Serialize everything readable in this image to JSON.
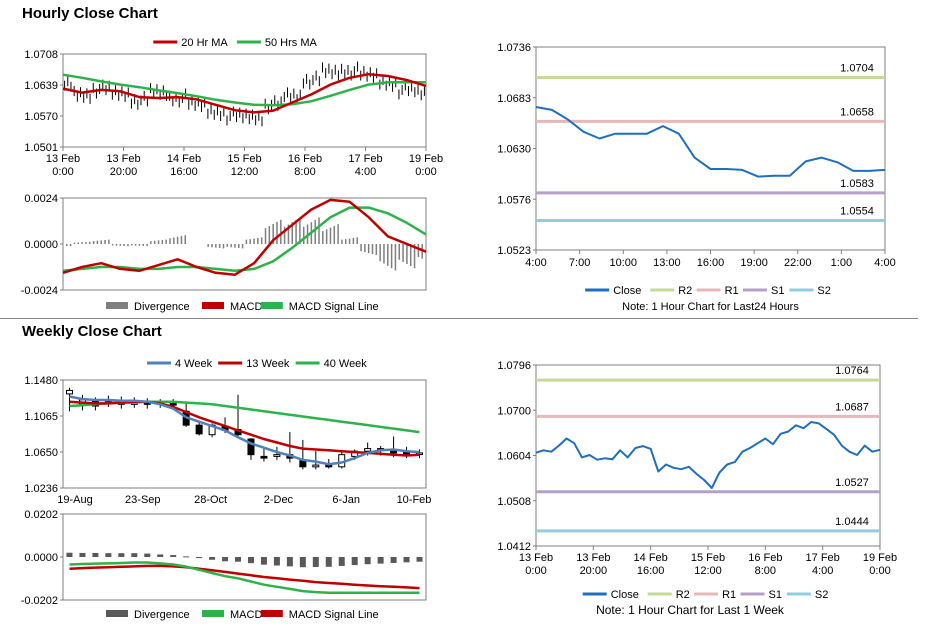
{
  "hourly_title": "Hourly Close Chart",
  "weekly_title": "Weekly Close Chart",
  "chart_data": [
    {
      "id": "hourly-price",
      "type": "line",
      "ylim": [
        1.0501,
        1.0708
      ],
      "yticks": [
        "1.0708",
        "1.0639",
        "1.0570",
        "1.0501"
      ],
      "xticks": [
        [
          "13 Feb",
          "0:00"
        ],
        [
          "13 Feb",
          "20:00"
        ],
        [
          "14 Feb",
          "16:00"
        ],
        [
          "15 Feb",
          "12:00"
        ],
        [
          "16 Feb",
          "8:00"
        ],
        [
          "17 Feb",
          "4:00"
        ],
        [
          "19 Feb",
          "0:00"
        ]
      ],
      "legend": [
        "20 Hr MA",
        "50 Hrs MA"
      ],
      "colors": {
        "ma20": "#c00000",
        "ma50": "#2db34a",
        "price": "#000000"
      },
      "series": [
        {
          "name": "20 Hr MA",
          "values": [
            1.0631,
            1.0622,
            1.0628,
            1.0625,
            1.0612,
            1.061,
            1.0612,
            1.0607,
            1.0595,
            1.0583,
            1.0578,
            1.0582,
            1.06,
            1.0618,
            1.064,
            1.0655,
            1.0663,
            1.0659,
            1.065,
            1.0637
          ]
        },
        {
          "name": "50 Hrs MA",
          "values": [
            1.0662,
            1.0655,
            1.0647,
            1.064,
            1.0634,
            1.0627,
            1.0621,
            1.0614,
            1.0606,
            1.06,
            1.0595,
            1.0594,
            1.0596,
            1.0603,
            1.0615,
            1.0628,
            1.064,
            1.0645,
            1.0645,
            1.0645
          ]
        },
        {
          "name": "Price",
          "values": [
            1.064,
            1.0618,
            1.063,
            1.062,
            1.0605,
            1.0622,
            1.061,
            1.0595,
            1.058,
            1.057,
            1.0568,
            1.0595,
            1.0615,
            1.065,
            1.0668,
            1.067,
            1.066,
            1.0645,
            1.0628,
            1.0621
          ]
        }
      ]
    },
    {
      "id": "hourly-macd",
      "type": "bar+line",
      "ylim": [
        -0.0024,
        0.0024
      ],
      "yticks": [
        "0.0024",
        "0.0000",
        "-0.0024"
      ],
      "legend": [
        "Divergence",
        "MACD",
        "MACD Signal Line"
      ],
      "colors": {
        "divergence": "#7f7f7f",
        "macd": "#c00000",
        "signal": "#2db34a"
      },
      "series": [
        {
          "name": "MACD",
          "values": [
            -0.0015,
            -0.0012,
            -0.001,
            -0.0013,
            -0.0014,
            -0.0011,
            -0.0008,
            -0.0012,
            -0.0015,
            -0.0016,
            -0.001,
            0.0002,
            0.001,
            0.0018,
            0.0023,
            0.0022,
            0.0014,
            0.0004,
            0.0,
            -0.0004
          ]
        },
        {
          "name": "MACD Signal Line",
          "values": [
            -0.0014,
            -0.0013,
            -0.0012,
            -0.0012,
            -0.0013,
            -0.0013,
            -0.0012,
            -0.0012,
            -0.0013,
            -0.0014,
            -0.0013,
            -0.0009,
            -0.0002,
            0.0006,
            0.0014,
            0.0019,
            0.0019,
            0.0016,
            0.0011,
            0.0005
          ]
        },
        {
          "name": "Divergence",
          "values": [
            -0.0001,
            0.0001,
            0.0002,
            -0.0001,
            -0.0001,
            0.0002,
            0.0004,
            0.0,
            -0.0002,
            -0.0002,
            0.0003,
            0.0011,
            0.0012,
            0.0012,
            0.0009,
            0.0003,
            -0.0005,
            -0.0012,
            -0.0011,
            -0.0009
          ]
        }
      ]
    },
    {
      "id": "hourly-24h",
      "type": "line",
      "ylim": [
        1.0523,
        1.0736
      ],
      "yticks": [
        "1.0736",
        "1.0683",
        "1.0630",
        "1.0576",
        "1.0523"
      ],
      "xticks": [
        "4:00",
        "7:00",
        "10:00",
        "13:00",
        "16:00",
        "19:00",
        "22:00",
        "1:00",
        "4:00"
      ],
      "legend": [
        "Close",
        "R2",
        "R1",
        "S1",
        "S2"
      ],
      "levels": {
        "R2": 1.0704,
        "R1": 1.0658,
        "S1": 1.0583,
        "S2": 1.0554
      },
      "level_labels": {
        "R2": "1.0704",
        "R1": "1.0658",
        "S1": "1.0583",
        "S2": "1.0554"
      },
      "colors": {
        "close": "#1f6fbf",
        "R2": "#c5d99a",
        "R1": "#e6b8b7",
        "S1": "#b3a2c7",
        "S2": "#93cddd"
      },
      "close": [
        1.0673,
        1.067,
        1.066,
        1.0647,
        1.064,
        1.0645,
        1.0645,
        1.0645,
        1.0653,
        1.0645,
        1.062,
        1.0608,
        1.0608,
        1.0607,
        1.06,
        1.0601,
        1.0601,
        1.0616,
        1.062,
        1.0615,
        1.0606,
        1.0606,
        1.0607
      ],
      "note": "Note: 1 Hour Chart for Last24 Hours"
    },
    {
      "id": "weekly-price",
      "type": "candlestick",
      "ylim": [
        1.0236,
        1.148
      ],
      "yticks": [
        "1.1480",
        "1.1065",
        "1.0650",
        "1.0236"
      ],
      "xticks": [
        "19-Aug",
        "23-Sep",
        "28-Oct",
        "2-Dec",
        "6-Jan",
        "10-Feb"
      ],
      "legend": [
        "4 Week",
        "13 Week",
        "40 Week"
      ],
      "colors": {
        "ma4": "#4f81bd",
        "ma13": "#c00000",
        "ma40": "#2db34a"
      },
      "candles": [
        {
          "o": 1.132,
          "c": 1.136,
          "h": 1.139,
          "l": 1.112
        },
        {
          "o": 1.12,
          "c": 1.125,
          "h": 1.131,
          "l": 1.113
        },
        {
          "o": 1.124,
          "c": 1.118,
          "h": 1.128,
          "l": 1.113
        },
        {
          "o": 1.121,
          "c": 1.123,
          "h": 1.13,
          "l": 1.117
        },
        {
          "o": 1.122,
          "c": 1.12,
          "h": 1.129,
          "l": 1.115
        },
        {
          "o": 1.12,
          "c": 1.124,
          "h": 1.128,
          "l": 1.116
        },
        {
          "o": 1.123,
          "c": 1.12,
          "h": 1.127,
          "l": 1.115
        },
        {
          "o": 1.123,
          "c": 1.122,
          "h": 1.126,
          "l": 1.116
        },
        {
          "o": 1.121,
          "c": 1.119,
          "h": 1.126,
          "l": 1.114
        },
        {
          "o": 1.112,
          "c": 1.096,
          "h": 1.121,
          "l": 1.094
        },
        {
          "o": 1.096,
          "c": 1.086,
          "h": 1.101,
          "l": 1.084
        },
        {
          "o": 1.085,
          "c": 1.096,
          "h": 1.098,
          "l": 1.082
        },
        {
          "o": 1.095,
          "c": 1.09,
          "h": 1.105,
          "l": 1.087
        },
        {
          "o": 1.091,
          "c": 1.085,
          "h": 1.131,
          "l": 1.081
        },
        {
          "o": 1.08,
          "c": 1.062,
          "h": 1.081,
          "l": 1.056
        },
        {
          "o": 1.06,
          "c": 1.058,
          "h": 1.069,
          "l": 1.054
        },
        {
          "o": 1.06,
          "c": 1.062,
          "h": 1.071,
          "l": 1.056
        },
        {
          "o": 1.062,
          "c": 1.058,
          "h": 1.088,
          "l": 1.053
        },
        {
          "o": 1.055,
          "c": 1.048,
          "h": 1.079,
          "l": 1.045
        },
        {
          "o": 1.048,
          "c": 1.05,
          "h": 1.066,
          "l": 1.045
        },
        {
          "o": 1.05,
          "c": 1.048,
          "h": 1.057,
          "l": 1.046
        },
        {
          "o": 1.048,
          "c": 1.062,
          "h": 1.065,
          "l": 1.046
        },
        {
          "o": 1.06,
          "c": 1.066,
          "h": 1.068,
          "l": 1.056
        },
        {
          "o": 1.066,
          "c": 1.069,
          "h": 1.076,
          "l": 1.061
        },
        {
          "o": 1.069,
          "c": 1.068,
          "h": 1.072,
          "l": 1.061
        },
        {
          "o": 1.067,
          "c": 1.064,
          "h": 1.083,
          "l": 1.059
        },
        {
          "o": 1.065,
          "c": 1.061,
          "h": 1.071,
          "l": 1.058
        },
        {
          "o": 1.063,
          "c": 1.064,
          "h": 1.068,
          "l": 1.058
        }
      ],
      "series": [
        {
          "name": "4 Week",
          "values": [
            1.129,
            1.126,
            1.125,
            1.125,
            1.124,
            1.124,
            1.123,
            1.12,
            1.115,
            1.105,
            1.1,
            1.095,
            1.09,
            1.082,
            1.075,
            1.07,
            1.065,
            1.061,
            1.056,
            1.054,
            1.051,
            1.053,
            1.058,
            1.064,
            1.067,
            1.068,
            1.066,
            1.065
          ]
        },
        {
          "name": "13 Week",
          "values": [
            1.123,
            1.122,
            1.121,
            1.121,
            1.122,
            1.123,
            1.123,
            1.121,
            1.117,
            1.111,
            1.105,
            1.1,
            1.095,
            1.09,
            1.085,
            1.08,
            1.076,
            1.072,
            1.069,
            1.068,
            1.067,
            1.066,
            1.065,
            1.064,
            1.063,
            1.062,
            1.061,
            1.062
          ]
        },
        {
          "name": "40 Week",
          "values": [
            1.118,
            1.119,
            1.12,
            1.121,
            1.122,
            1.122,
            1.123,
            1.123,
            1.123,
            1.122,
            1.121,
            1.12,
            1.118,
            1.116,
            1.114,
            1.112,
            1.11,
            1.108,
            1.106,
            1.104,
            1.102,
            1.1,
            1.098,
            1.096,
            1.094,
            1.092,
            1.09,
            1.088
          ]
        }
      ]
    },
    {
      "id": "weekly-macd",
      "type": "bar+line",
      "ylim": [
        -0.0202,
        0.0202
      ],
      "yticks": [
        "0.0202",
        "0.0000",
        "-0.0202"
      ],
      "legend": [
        "Divergence",
        "MACD",
        "MACD Signal Line"
      ],
      "colors": {
        "divergence": "#595959",
        "macd": "#2db34a",
        "signal": "#c00000"
      },
      "series": [
        {
          "name": "MACD",
          "values": [
            -0.0035,
            -0.0033,
            -0.0031,
            -0.003,
            -0.0028,
            -0.0026,
            -0.0026,
            -0.003,
            -0.0035,
            -0.0045,
            -0.006,
            -0.0075,
            -0.009,
            -0.01,
            -0.0115,
            -0.013,
            -0.014,
            -0.015,
            -0.016,
            -0.0165,
            -0.0168,
            -0.0168,
            -0.0168,
            -0.0168,
            -0.0168,
            -0.0168,
            -0.0168,
            -0.0168
          ]
        },
        {
          "name": "MACD Signal Line",
          "values": [
            -0.0055,
            -0.0052,
            -0.005,
            -0.0048,
            -0.0046,
            -0.0044,
            -0.0042,
            -0.0042,
            -0.0044,
            -0.0048,
            -0.0055,
            -0.0062,
            -0.007,
            -0.0078,
            -0.0086,
            -0.0094,
            -0.01,
            -0.0106,
            -0.0112,
            -0.0118,
            -0.0122,
            -0.0126,
            -0.013,
            -0.0134,
            -0.0137,
            -0.014,
            -0.0143,
            -0.0146
          ]
        },
        {
          "name": "Divergence",
          "values": [
            0.002,
            0.0019,
            0.0019,
            0.0018,
            0.0018,
            0.0018,
            0.0016,
            0.0012,
            0.0009,
            0.0003,
            -0.0005,
            -0.0013,
            -0.002,
            -0.0022,
            -0.0029,
            -0.0036,
            -0.004,
            -0.0044,
            -0.0048,
            -0.0047,
            -0.0046,
            -0.0042,
            -0.0038,
            -0.0034,
            -0.0031,
            -0.0028,
            -0.0025,
            -0.0022
          ]
        }
      ]
    },
    {
      "id": "weekly-1w",
      "type": "line",
      "ylim": [
        1.0412,
        1.0796
      ],
      "yticks": [
        "1.0796",
        "1.0700",
        "1.0604",
        "1.0508",
        "1.0412"
      ],
      "xticks": [
        [
          "13 Feb",
          "0:00"
        ],
        [
          "13 Feb",
          "20:00"
        ],
        [
          "14 Feb",
          "16:00"
        ],
        [
          "15 Feb",
          "12:00"
        ],
        [
          "16 Feb",
          "8:00"
        ],
        [
          "17 Feb",
          "4:00"
        ],
        [
          "19 Feb",
          "0:00"
        ]
      ],
      "legend": [
        "Close",
        "R2",
        "R1",
        "S1",
        "S2"
      ],
      "levels": {
        "R2": 1.0764,
        "R1": 1.0687,
        "S1": 1.0527,
        "S2": 1.0444
      },
      "level_labels": {
        "R2": "1.0764",
        "R1": "1.0687",
        "S1": "1.0527",
        "S2": "1.0444"
      },
      "colors": {
        "close": "#1f6fbf",
        "R2": "#c5d99a",
        "R1": "#e6b8b7",
        "S1": "#b3a2c7",
        "S2": "#93cddd"
      },
      "close": [
        1.061,
        1.0615,
        1.0612,
        1.0625,
        1.064,
        1.063,
        1.06,
        1.0605,
        1.0595,
        1.0598,
        1.0596,
        1.0615,
        1.06,
        1.062,
        1.0624,
        1.0618,
        1.057,
        1.0585,
        1.0578,
        1.0575,
        1.058,
        1.0565,
        1.0552,
        1.0535,
        1.0568,
        1.0585,
        1.059,
        1.0612,
        1.062,
        1.063,
        1.064,
        1.0628,
        1.065,
        1.0655,
        1.0668,
        1.0662,
        1.0675,
        1.0672,
        1.066,
        1.0648,
        1.0625,
        1.0612,
        1.0605,
        1.0625,
        1.0612,
        1.0616
      ]
    }
  ],
  "notes": {
    "weekly_1w": "Note: 1 Hour Chart for Last 1 Week"
  }
}
